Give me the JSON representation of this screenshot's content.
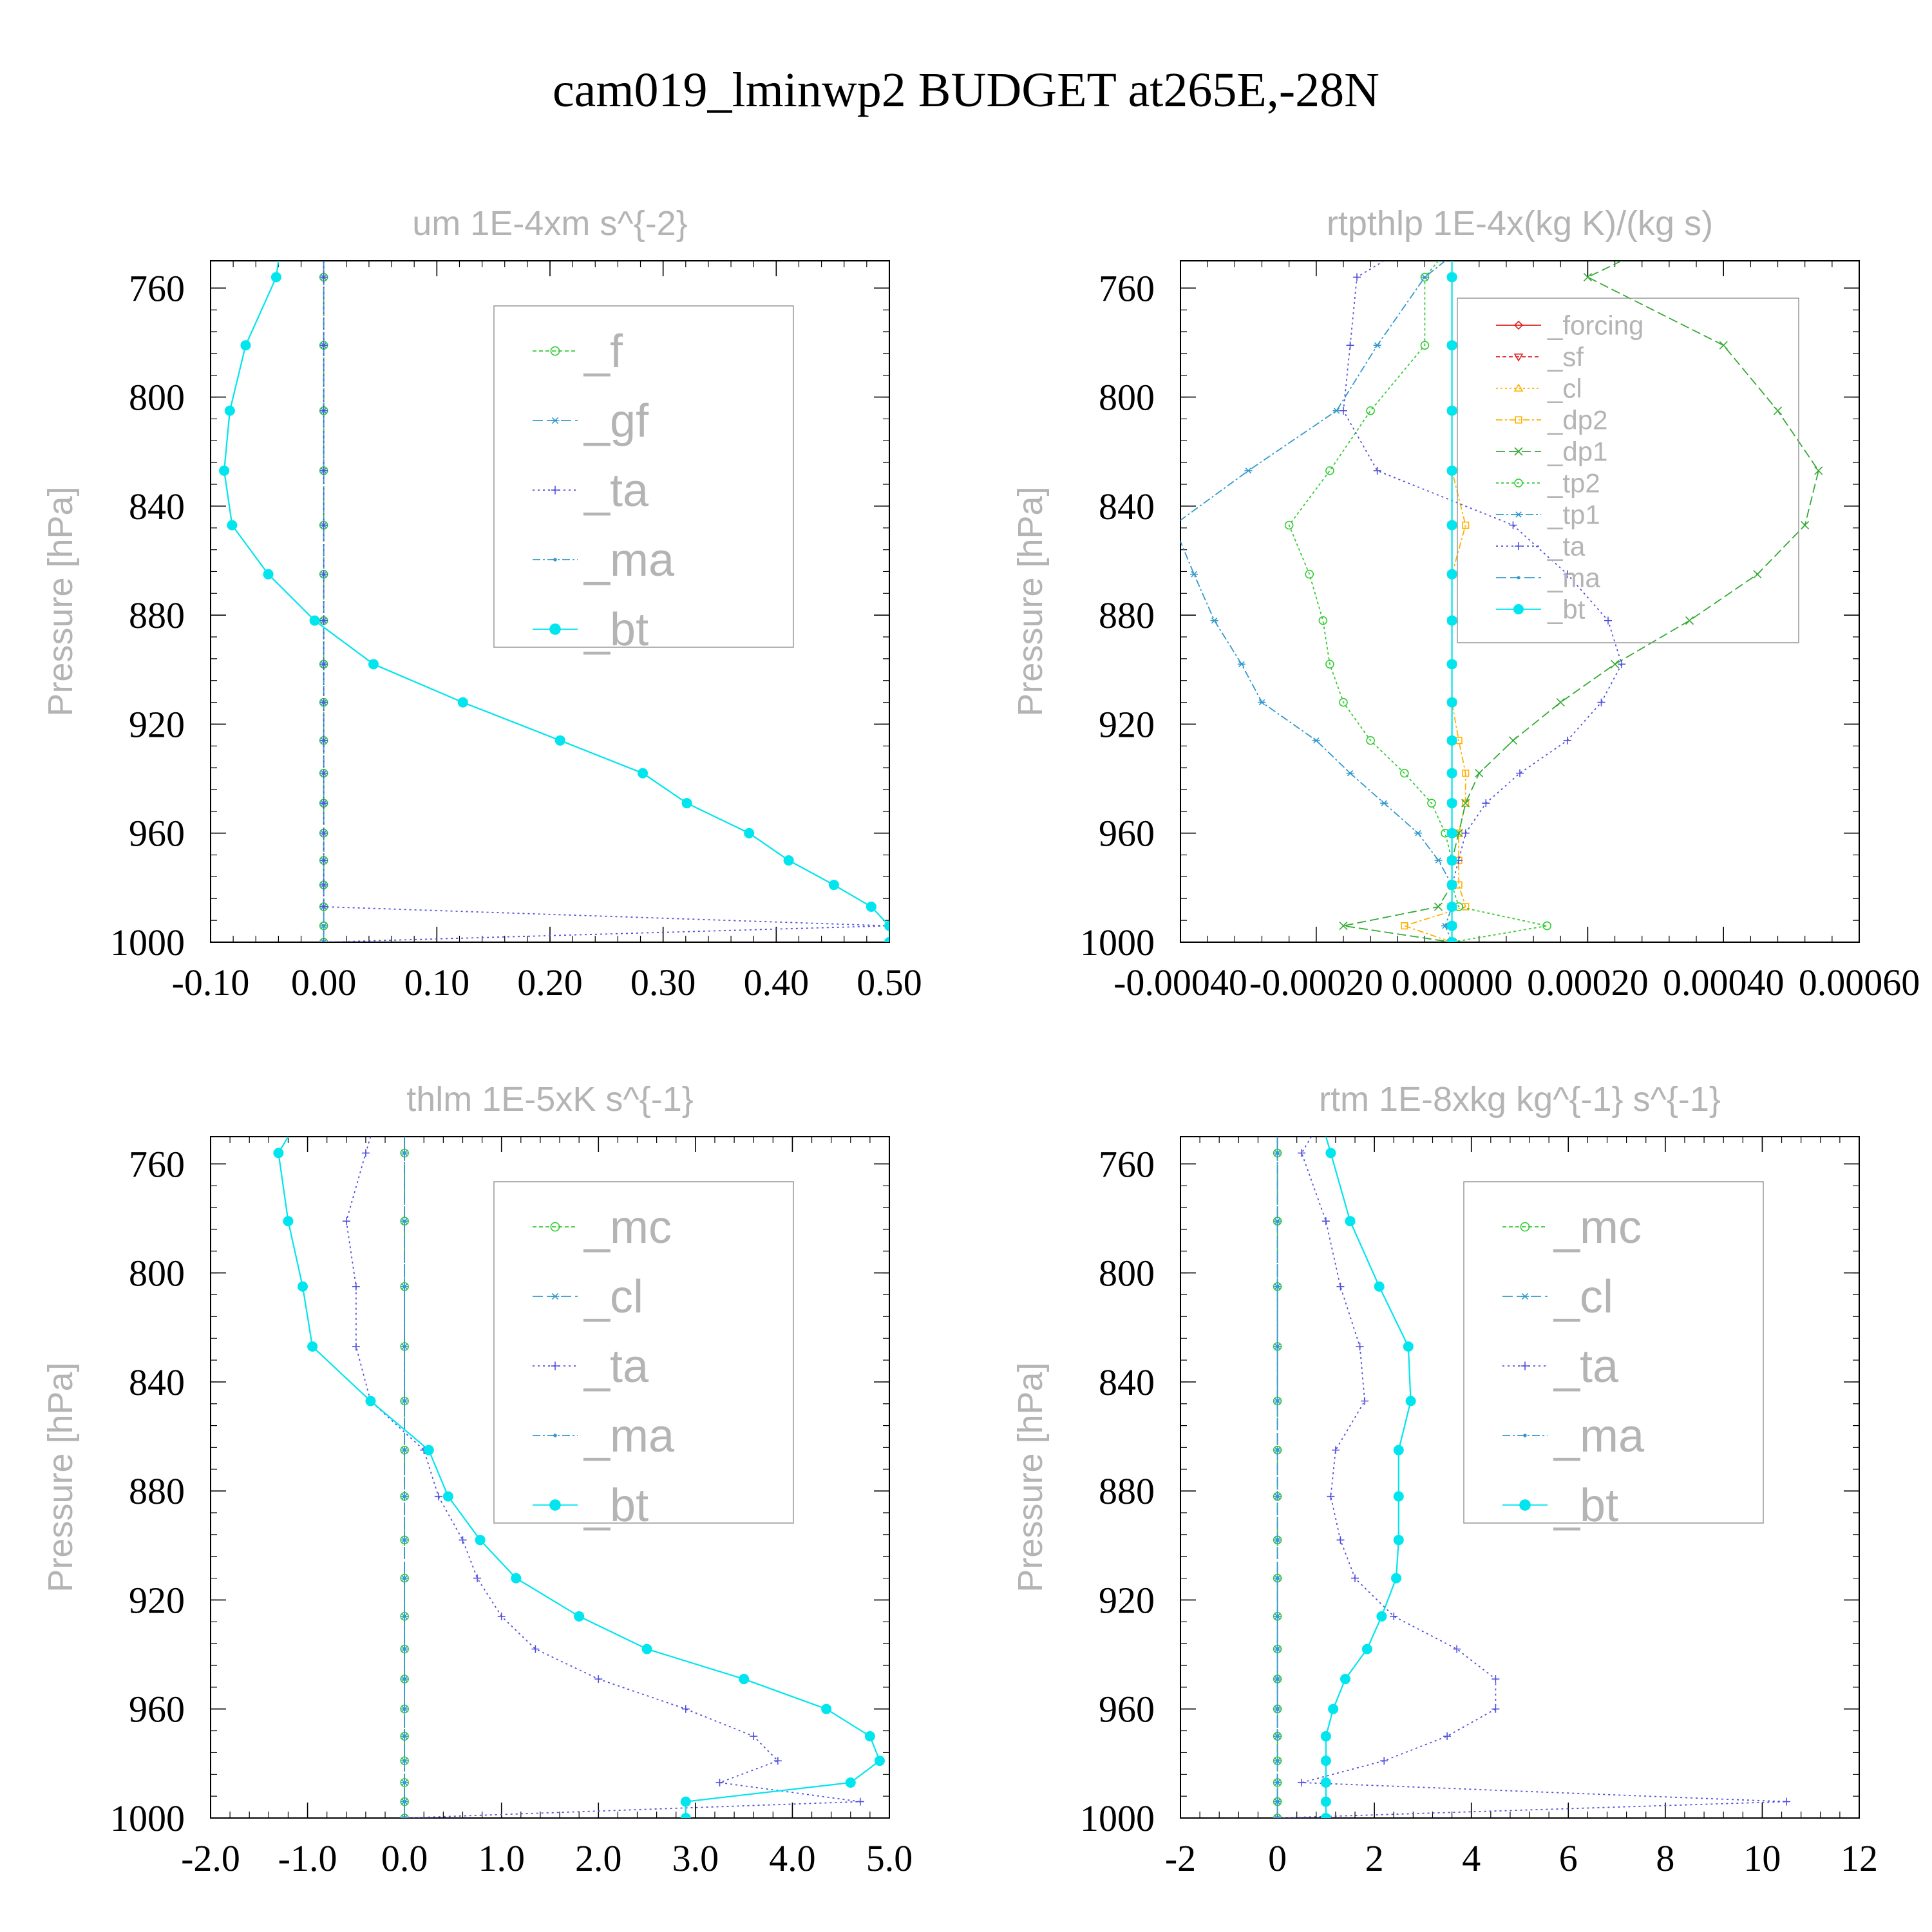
{
  "figure": {
    "title": "cam019_lminwp2  BUDGET at265E,-28N"
  },
  "chart_data": [
    {
      "type": "line",
      "title": "um  1E-4xm s^{-2}",
      "ylabel": "Pressure [hPa]",
      "xlabel": "",
      "xlim": [
        -0.1,
        0.5
      ],
      "ylim": [
        1000,
        750
      ],
      "xticks": [
        "-0.10",
        "0.00",
        "0.10",
        "0.20",
        "0.30",
        "0.40",
        "0.50"
      ],
      "xtick_values": [
        -0.1,
        0.0,
        0.1,
        0.2,
        0.3,
        0.4,
        0.5
      ],
      "yticks": [
        "760",
        "800",
        "840",
        "880",
        "920",
        "960",
        "1000"
      ],
      "ytick_values": [
        760,
        800,
        840,
        880,
        920,
        960,
        1000
      ],
      "legend_position": "top-right",
      "levels": [
        750,
        756,
        781,
        805,
        827,
        847,
        865,
        882,
        898,
        912,
        926,
        938,
        949,
        960,
        970,
        979,
        987,
        994,
        1000
      ],
      "series": [
        {
          "name": "_f",
          "color": "#33cc33",
          "marker": "circle-open",
          "dash": "6,4",
          "values": [
            0,
            0,
            0,
            0,
            0,
            0,
            0,
            0,
            0,
            0,
            0,
            0,
            0,
            0,
            0,
            0,
            0,
            0,
            0
          ]
        },
        {
          "name": "_gf",
          "color": "#3399cc",
          "marker": "asterisk",
          "dash": "16,6",
          "values": [
            0,
            0,
            0,
            0,
            0,
            0,
            0,
            0,
            0,
            0,
            0,
            0,
            0,
            0,
            0,
            0,
            0,
            0,
            0
          ]
        },
        {
          "name": "_ta",
          "color": "#5050dd",
          "marker": "plus",
          "dash": "3,5",
          "values": [
            0,
            0,
            0,
            0,
            0,
            0,
            0,
            0,
            0,
            0,
            0,
            0,
            0,
            0,
            0,
            0,
            0,
            0.5,
            0
          ]
        },
        {
          "name": "_ma",
          "color": "#3399cc",
          "marker": "dot",
          "dash": "12,4,3,4",
          "values": [
            -0.04,
            -0.042,
            -0.069,
            -0.083,
            -0.088,
            -0.081,
            -0.049,
            -0.008,
            0.044,
            0.123,
            0.209,
            0.282,
            0.321,
            0.376,
            0.411,
            0.451,
            0.484,
            0.5,
            0.5
          ]
        },
        {
          "name": "_bt",
          "color": "#00e5ee",
          "marker": "filled-circle",
          "dash": "",
          "values": [
            -0.04,
            -0.042,
            -0.069,
            -0.083,
            -0.088,
            -0.081,
            -0.049,
            -0.008,
            0.044,
            0.123,
            0.209,
            0.282,
            0.321,
            0.376,
            0.411,
            0.451,
            0.484,
            0.5,
            0.5
          ]
        }
      ]
    },
    {
      "type": "line",
      "title": "rtpthlp  1E-4x(kg K)/(kg s)",
      "ylabel": "Pressure [hPa]",
      "xlabel": "",
      "xlim": [
        -0.0004,
        0.0006
      ],
      "ylim": [
        1000,
        750
      ],
      "xticks": [
        "-0.00040",
        "-0.00020",
        "0.00000",
        "0.00020",
        "0.00040",
        "0.00060"
      ],
      "xtick_values": [
        -0.0004,
        -0.0002,
        0.0,
        0.0002,
        0.0004,
        0.0006
      ],
      "yticks": [
        "760",
        "800",
        "840",
        "880",
        "920",
        "960",
        "1000"
      ],
      "ytick_values": [
        760,
        800,
        840,
        880,
        920,
        960,
        1000
      ],
      "legend_position": "top-right",
      "levels": [
        750,
        756,
        781,
        805,
        827,
        847,
        865,
        882,
        898,
        912,
        926,
        938,
        949,
        960,
        970,
        979,
        987,
        994,
        1000
      ],
      "series": [
        {
          "name": "_forcing",
          "color": "#dd2222",
          "marker": "diamond-open",
          "dash": "",
          "values": [
            0,
            0,
            0,
            0,
            0,
            0,
            0,
            0,
            0,
            0,
            0,
            0,
            0,
            0,
            0,
            0,
            0,
            0,
            0
          ]
        },
        {
          "name": "_sf",
          "color": "#dd2222",
          "marker": "triangle-down-open",
          "dash": "6,4",
          "values": [
            0,
            0,
            0,
            0,
            0,
            0,
            0,
            0,
            0,
            0,
            0,
            0,
            0,
            0,
            0,
            0,
            0,
            0,
            0
          ]
        },
        {
          "name": "_cl",
          "color": "#ffb000",
          "marker": "triangle-up-open",
          "dash": "3,4",
          "values": [
            0,
            0,
            0,
            0,
            0,
            0,
            0,
            0,
            0,
            0,
            0,
            0,
            0,
            0,
            0,
            0,
            0,
            0,
            0
          ]
        },
        {
          "name": "_dp2",
          "color": "#ffb000",
          "marker": "square-open",
          "dash": "10,4,3,4",
          "values": [
            0,
            0,
            0,
            0,
            0,
            2e-05,
            0,
            0,
            0,
            0,
            1e-05,
            2e-05,
            2e-05,
            1e-05,
            1e-05,
            1e-05,
            2e-05,
            -7e-05,
            0
          ]
        },
        {
          "name": "_dp1",
          "color": "#33aa33",
          "marker": "x",
          "dash": "14,6",
          "values": [
            0.00025,
            0.0002,
            0.0004,
            0.00048,
            0.00054,
            0.00052,
            0.00045,
            0.00035,
            0.00024,
            0.00016,
            9e-05,
            4e-05,
            2e-05,
            1e-05,
            0,
            0,
            -2e-05,
            -0.00016,
            0
          ]
        },
        {
          "name": "_tp2",
          "color": "#33cc33",
          "marker": "circle-open",
          "dash": "4,4",
          "values": [
            -2e-05,
            -4e-05,
            -4e-05,
            -0.00012,
            -0.00018,
            -0.00024,
            -0.00021,
            -0.00019,
            -0.00018,
            -0.00016,
            -0.00012,
            -7e-05,
            -3e-05,
            -1e-05,
            0,
            0,
            1e-05,
            0.00014,
            0
          ]
        },
        {
          "name": "_tp1",
          "color": "#3399cc",
          "marker": "asterisk",
          "dash": "12,4,3,4",
          "values": [
            -1e-05,
            -4e-05,
            -0.00011,
            -0.00017,
            -0.0003,
            -0.00041,
            -0.00038,
            -0.00035,
            -0.00031,
            -0.00028,
            -0.0002,
            -0.00015,
            -0.0001,
            -5e-05,
            -2e-05,
            0,
            0,
            -1e-05,
            0
          ]
        },
        {
          "name": "_ta",
          "color": "#5050dd",
          "marker": "plus",
          "dash": "3,5",
          "values": [
            -0.0001,
            -0.00014,
            -0.00015,
            -0.00016,
            -0.00011,
            9e-05,
            0.00017,
            0.00023,
            0.00025,
            0.00022,
            0.00017,
            0.0001,
            5e-05,
            2e-05,
            1e-05,
            0,
            0,
            0,
            0
          ]
        },
        {
          "name": "_ma",
          "color": "#3399cc",
          "marker": "dot",
          "dash": "16,6",
          "values": [
            0,
            0,
            0,
            0,
            0,
            0,
            0,
            0,
            0,
            0,
            0,
            0,
            0,
            0,
            0,
            0,
            0,
            0,
            0
          ]
        },
        {
          "name": "_bt",
          "color": "#00e5ee",
          "marker": "filled-circle",
          "dash": "",
          "values": [
            0,
            0,
            0,
            0,
            0,
            0,
            0,
            0,
            0,
            0,
            0,
            0,
            0,
            0,
            0,
            0,
            0,
            0,
            0
          ]
        }
      ]
    },
    {
      "type": "line",
      "title": "thlm  1E-5xK s^{-1}",
      "ylabel": "Pressure [hPa]",
      "xlabel": "",
      "xlim": [
        -2.0,
        5.0
      ],
      "ylim": [
        1000,
        750
      ],
      "xticks": [
        "-2.0",
        "-1.0",
        "0.0",
        "1.0",
        "2.0",
        "3.0",
        "4.0",
        "5.0"
      ],
      "xtick_values": [
        -2,
        -1,
        0,
        1,
        2,
        3,
        4,
        5
      ],
      "yticks": [
        "760",
        "800",
        "840",
        "880",
        "920",
        "960",
        "1000"
      ],
      "ytick_values": [
        760,
        800,
        840,
        880,
        920,
        960,
        1000
      ],
      "legend_position": "top-right",
      "levels": [
        750,
        756,
        781,
        805,
        827,
        847,
        865,
        882,
        898,
        912,
        926,
        938,
        949,
        960,
        970,
        979,
        987,
        994,
        1000
      ],
      "series": [
        {
          "name": "_mc",
          "color": "#33cc33",
          "marker": "circle-open",
          "dash": "6,4",
          "values": [
            0,
            0,
            0,
            0,
            0,
            0,
            0,
            0,
            0,
            0,
            0,
            0,
            0,
            0,
            0,
            0,
            0,
            0,
            0
          ]
        },
        {
          "name": "_cl",
          "color": "#3399cc",
          "marker": "asterisk",
          "dash": "16,6",
          "values": [
            0,
            0,
            0,
            0,
            0,
            0,
            0,
            0,
            0,
            0,
            0,
            0,
            0,
            0,
            0,
            0,
            0,
            0,
            0
          ]
        },
        {
          "name": "_ta",
          "color": "#5050dd",
          "marker": "plus",
          "dash": "3,5",
          "values": [
            -0.35,
            -0.4,
            -0.6,
            -0.5,
            -0.5,
            -0.35,
            0.2,
            0.35,
            0.6,
            0.75,
            1.0,
            1.35,
            2.0,
            2.9,
            3.6,
            3.85,
            3.25,
            4.7,
            0
          ]
        },
        {
          "name": "_ma",
          "color": "#3399cc",
          "marker": "dot",
          "dash": "12,4,3,4",
          "values": [
            0,
            0,
            0,
            0,
            0,
            0,
            0,
            0,
            0,
            0,
            0,
            0,
            0,
            0,
            0,
            0,
            0,
            0,
            0
          ]
        },
        {
          "name": "_bt",
          "color": "#00e5ee",
          "marker": "filled-circle",
          "dash": "",
          "values": [
            -1.2,
            -1.3,
            -1.2,
            -1.05,
            -0.95,
            -0.35,
            0.25,
            0.45,
            0.78,
            1.15,
            1.8,
            2.5,
            3.5,
            4.35,
            4.8,
            4.9,
            4.6,
            2.9,
            2.9
          ]
        }
      ]
    },
    {
      "type": "line",
      "title": "rtm  1E-8xkg kg^{-1} s^{-1}",
      "ylabel": "Pressure [hPa]",
      "xlabel": "",
      "xlim": [
        -2,
        12
      ],
      "ylim": [
        1000,
        750
      ],
      "xticks": [
        "-2",
        "0",
        "2",
        "4",
        "6",
        "8",
        "10",
        "12"
      ],
      "xtick_values": [
        -2,
        0,
        2,
        4,
        6,
        8,
        10,
        12
      ],
      "yticks": [
        "760",
        "800",
        "840",
        "880",
        "920",
        "960",
        "1000"
      ],
      "ytick_values": [
        760,
        800,
        840,
        880,
        920,
        960,
        1000
      ],
      "legend_position": "top-right",
      "levels": [
        750,
        756,
        781,
        805,
        827,
        847,
        865,
        882,
        898,
        912,
        926,
        938,
        949,
        960,
        970,
        979,
        987,
        994,
        1000
      ],
      "series": [
        {
          "name": "_mc",
          "color": "#33cc33",
          "marker": "circle-open",
          "dash": "6,4",
          "values": [
            0,
            0,
            0,
            0,
            0,
            0,
            0,
            0,
            0,
            0,
            0,
            0,
            0,
            0,
            0,
            0,
            0,
            0,
            0
          ]
        },
        {
          "name": "_cl",
          "color": "#3399cc",
          "marker": "asterisk",
          "dash": "16,6",
          "values": [
            0,
            0,
            0,
            0,
            0,
            0,
            0,
            0,
            0,
            0,
            0,
            0,
            0,
            0,
            0,
            0,
            0,
            0,
            0
          ]
        },
        {
          "name": "_ta",
          "color": "#5050dd",
          "marker": "plus",
          "dash": "3,5",
          "values": [
            0.7,
            0.5,
            1.0,
            1.3,
            1.7,
            1.8,
            1.2,
            1.1,
            1.3,
            1.6,
            2.4,
            3.7,
            4.5,
            4.5,
            3.5,
            2.2,
            0.5,
            10.5,
            0
          ]
        },
        {
          "name": "_ma",
          "color": "#3399cc",
          "marker": "dot",
          "dash": "12,4,3,4",
          "values": [
            0,
            0,
            0,
            0,
            0,
            0,
            0,
            0,
            0,
            0,
            0,
            0,
            0,
            0,
            0,
            0,
            0,
            0,
            0
          ]
        },
        {
          "name": "_bt",
          "color": "#00e5ee",
          "marker": "filled-circle",
          "dash": "",
          "values": [
            1.0,
            1.1,
            1.5,
            2.1,
            2.7,
            2.75,
            2.5,
            2.5,
            2.5,
            2.45,
            2.15,
            1.85,
            1.4,
            1.15,
            1.0,
            1.0,
            1.0,
            1.0,
            1.0
          ]
        }
      ]
    }
  ]
}
